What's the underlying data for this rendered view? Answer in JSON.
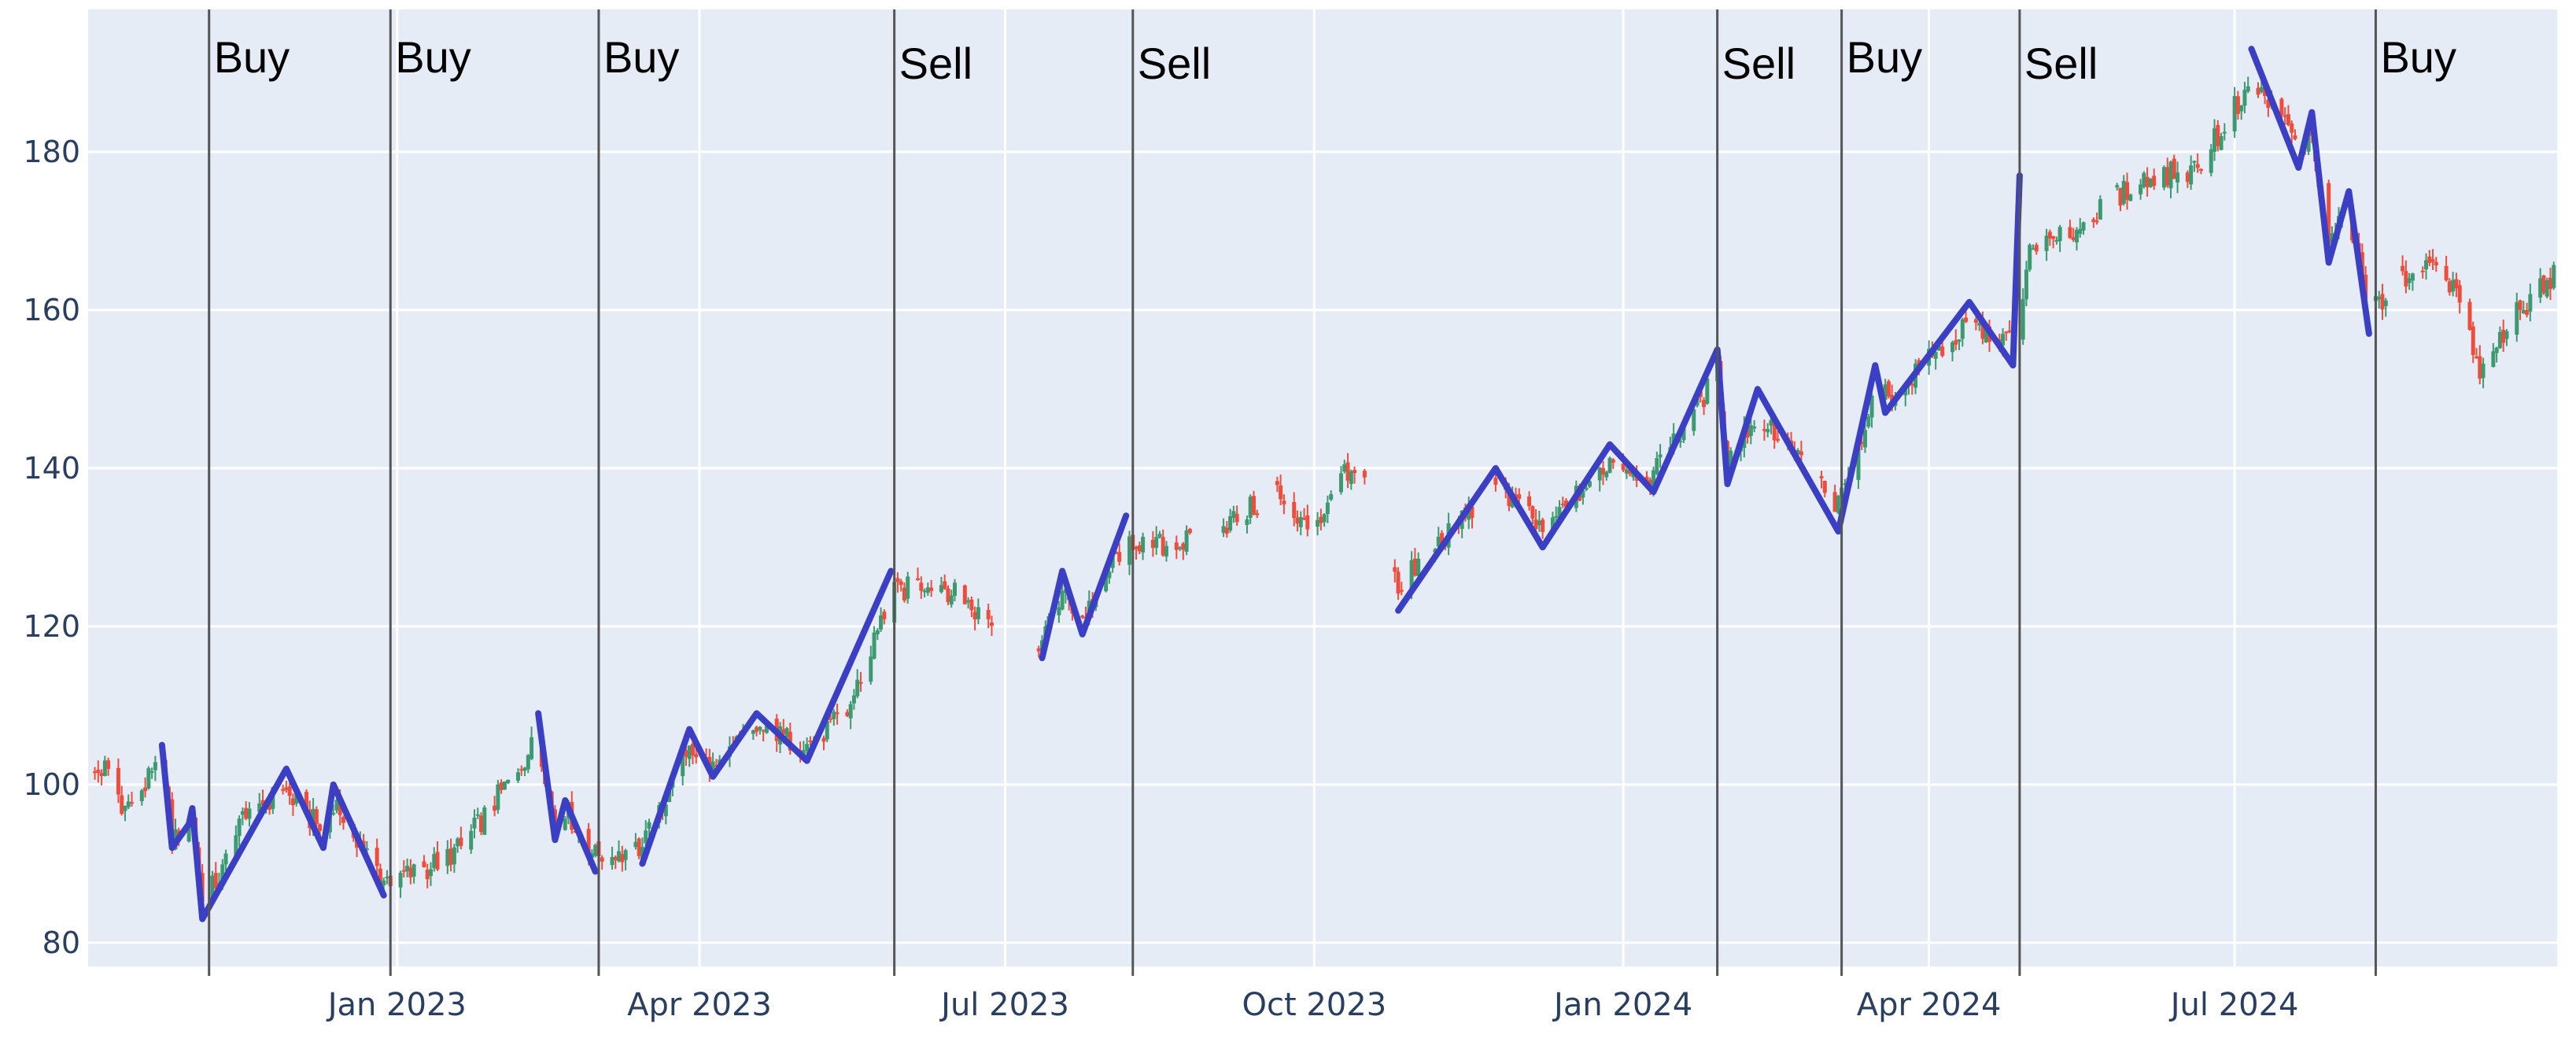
{
  "chart_data": {
    "type": "candlestick",
    "title": "",
    "xlabel": "",
    "ylabel": "",
    "xlim": [
      "2022-10-01",
      "2024-10-05"
    ],
    "ylim": [
      77,
      198
    ],
    "grid": true,
    "legend": "none",
    "colors": {
      "plot_bg": "#e5ecf6",
      "grid": "#ffffff",
      "axis_text": "#2a3f5f",
      "increasing": "#3d9970",
      "decreasing": "#ef4c3c",
      "zigzag": "#3b3fc4",
      "signal_line": "#555555"
    },
    "y_ticks": [
      {
        "value": 80,
        "label": "80"
      },
      {
        "value": 100,
        "label": "100"
      },
      {
        "value": 120,
        "label": "120"
      },
      {
        "value": 140,
        "label": "140"
      },
      {
        "value": 160,
        "label": "160"
      },
      {
        "value": 180,
        "label": "180"
      }
    ],
    "x_ticks": [
      {
        "date": "2023-01-01",
        "label": "Jan 2023"
      },
      {
        "date": "2023-04-01",
        "label": "Apr 2023"
      },
      {
        "date": "2023-07-01",
        "label": "Jul 2023"
      },
      {
        "date": "2023-10-01",
        "label": "Oct 2023"
      },
      {
        "date": "2024-01-01",
        "label": "Jan 2024"
      },
      {
        "date": "2024-04-01",
        "label": "Apr 2024"
      },
      {
        "date": "2024-07-01",
        "label": "Jul 2024"
      }
    ],
    "signals": [
      {
        "date": "2022-11-06",
        "label": "Buy"
      },
      {
        "date": "2022-12-30",
        "label": "Buy"
      },
      {
        "date": "2023-03-02",
        "label": "Buy"
      },
      {
        "date": "2023-05-29",
        "label": "Sell"
      },
      {
        "date": "2023-08-08",
        "label": "Sell"
      },
      {
        "date": "2024-01-29",
        "label": "Sell"
      },
      {
        "date": "2024-03-06",
        "label": "Buy"
      },
      {
        "date": "2024-04-28",
        "label": "Sell"
      },
      {
        "date": "2024-08-12",
        "label": "Buy"
      }
    ],
    "zigzag_segments": [
      [
        {
          "x": "2022-10-23",
          "y": 105
        },
        {
          "x": "2022-10-26",
          "y": 92
        },
        {
          "x": "2022-10-31",
          "y": 95
        },
        {
          "x": "2022-11-01",
          "y": 97
        },
        {
          "x": "2022-11-04",
          "y": 83
        },
        {
          "x": "2022-11-29",
          "y": 102
        },
        {
          "x": "2022-12-10",
          "y": 92
        },
        {
          "x": "2022-12-13",
          "y": 100
        },
        {
          "x": "2022-12-28",
          "y": 86
        }
      ],
      [
        {
          "x": "2023-02-12",
          "y": 109
        },
        {
          "x": "2023-02-17",
          "y": 93
        },
        {
          "x": "2023-02-20",
          "y": 98
        },
        {
          "x": "2023-03-01",
          "y": 89
        }
      ],
      [
        {
          "x": "2023-03-15",
          "y": 90
        },
        {
          "x": "2023-03-29",
          "y": 107
        },
        {
          "x": "2023-04-05",
          "y": 101
        },
        {
          "x": "2023-04-18",
          "y": 109
        },
        {
          "x": "2023-05-03",
          "y": 103
        },
        {
          "x": "2023-05-28",
          "y": 127
        }
      ],
      [
        {
          "x": "2023-07-12",
          "y": 116
        },
        {
          "x": "2023-07-18",
          "y": 127
        },
        {
          "x": "2023-07-24",
          "y": 119
        },
        {
          "x": "2023-08-06",
          "y": 134
        }
      ],
      [
        {
          "x": "2023-10-26",
          "y": 122
        },
        {
          "x": "2023-11-24",
          "y": 140
        },
        {
          "x": "2023-12-08",
          "y": 130
        },
        {
          "x": "2023-12-28",
          "y": 143
        },
        {
          "x": "2024-01-10",
          "y": 137
        },
        {
          "x": "2024-01-29",
          "y": 155
        },
        {
          "x": "2024-02-01",
          "y": 138
        },
        {
          "x": "2024-02-10",
          "y": 150
        },
        {
          "x": "2024-03-05",
          "y": 132
        },
        {
          "x": "2024-03-16",
          "y": 153
        },
        {
          "x": "2024-03-19",
          "y": 147
        },
        {
          "x": "2024-04-13",
          "y": 161
        },
        {
          "x": "2024-04-26",
          "y": 153
        },
        {
          "x": "2024-04-28",
          "y": 177
        }
      ],
      [
        {
          "x": "2024-07-06",
          "y": 193
        },
        {
          "x": "2024-07-20",
          "y": 178
        },
        {
          "x": "2024-07-24",
          "y": 185
        },
        {
          "x": "2024-07-29",
          "y": 166
        },
        {
          "x": "2024-08-04",
          "y": 175
        },
        {
          "x": "2024-08-10",
          "y": 157
        }
      ]
    ],
    "price_anchors": [
      {
        "x": "2022-10-01",
        "y": 101
      },
      {
        "x": "2022-10-06",
        "y": 102
      },
      {
        "x": "2022-10-12",
        "y": 97
      },
      {
        "x": "2022-10-20",
        "y": 101
      },
      {
        "x": "2022-10-23",
        "y": 103
      },
      {
        "x": "2022-10-26",
        "y": 93
      },
      {
        "x": "2022-11-01",
        "y": 96
      },
      {
        "x": "2022-11-04",
        "y": 85
      },
      {
        "x": "2022-11-10",
        "y": 89
      },
      {
        "x": "2022-11-17",
        "y": 97
      },
      {
        "x": "2022-11-29",
        "y": 99
      },
      {
        "x": "2022-12-10",
        "y": 94
      },
      {
        "x": "2022-12-13",
        "y": 98
      },
      {
        "x": "2022-12-28",
        "y": 88
      },
      {
        "x": "2023-01-08",
        "y": 89
      },
      {
        "x": "2023-01-20",
        "y": 92
      },
      {
        "x": "2023-02-01",
        "y": 99
      },
      {
        "x": "2023-02-12",
        "y": 106
      },
      {
        "x": "2023-02-17",
        "y": 95
      },
      {
        "x": "2023-02-20",
        "y": 97
      },
      {
        "x": "2023-03-01",
        "y": 91
      },
      {
        "x": "2023-03-15",
        "y": 92
      },
      {
        "x": "2023-03-29",
        "y": 105
      },
      {
        "x": "2023-04-05",
        "y": 102
      },
      {
        "x": "2023-04-18",
        "y": 107
      },
      {
        "x": "2023-05-03",
        "y": 105
      },
      {
        "x": "2023-05-15",
        "y": 109
      },
      {
        "x": "2023-05-28",
        "y": 124
      },
      {
        "x": "2023-06-10",
        "y": 126
      },
      {
        "x": "2023-06-25",
        "y": 121
      },
      {
        "x": "2023-07-12",
        "y": 118
      },
      {
        "x": "2023-07-18",
        "y": 124
      },
      {
        "x": "2023-07-24",
        "y": 121
      },
      {
        "x": "2023-08-06",
        "y": 131
      },
      {
        "x": "2023-08-20",
        "y": 130
      },
      {
        "x": "2023-09-05",
        "y": 133
      },
      {
        "x": "2023-09-20",
        "y": 137
      },
      {
        "x": "2023-10-01",
        "y": 131
      },
      {
        "x": "2023-10-10",
        "y": 139
      },
      {
        "x": "2023-10-20",
        "y": 138
      },
      {
        "x": "2023-10-26",
        "y": 125
      },
      {
        "x": "2023-11-10",
        "y": 132
      },
      {
        "x": "2023-11-24",
        "y": 138
      },
      {
        "x": "2023-12-08",
        "y": 132
      },
      {
        "x": "2023-12-28",
        "y": 141
      },
      {
        "x": "2024-01-10",
        "y": 139
      },
      {
        "x": "2024-01-29",
        "y": 152
      },
      {
        "x": "2024-02-01",
        "y": 141
      },
      {
        "x": "2024-02-10",
        "y": 147
      },
      {
        "x": "2024-03-05",
        "y": 135
      },
      {
        "x": "2024-03-16",
        "y": 150
      },
      {
        "x": "2024-03-19",
        "y": 149
      },
      {
        "x": "2024-04-13",
        "y": 158
      },
      {
        "x": "2024-04-26",
        "y": 156
      },
      {
        "x": "2024-05-01",
        "y": 167
      },
      {
        "x": "2024-05-15",
        "y": 170
      },
      {
        "x": "2024-06-01",
        "y": 176
      },
      {
        "x": "2024-06-20",
        "y": 178
      },
      {
        "x": "2024-07-06",
        "y": 189
      },
      {
        "x": "2024-07-20",
        "y": 181
      },
      {
        "x": "2024-07-24",
        "y": 182
      },
      {
        "x": "2024-07-29",
        "y": 169
      },
      {
        "x": "2024-08-04",
        "y": 172
      },
      {
        "x": "2024-08-10",
        "y": 160
      },
      {
        "x": "2024-08-25",
        "y": 166
      },
      {
        "x": "2024-09-05",
        "y": 163
      },
      {
        "x": "2024-09-12",
        "y": 151
      },
      {
        "x": "2024-09-20",
        "y": 158
      },
      {
        "x": "2024-10-05",
        "y": 165
      }
    ],
    "price_gaps": [
      [
        "2023-06-28",
        "2023-07-10"
      ],
      [
        "2023-08-28",
        "2023-09-03"
      ],
      [
        "2023-09-15",
        "2023-09-19"
      ],
      [
        "2023-10-17",
        "2023-10-24"
      ],
      [
        "2023-11-02",
        "2023-11-05"
      ],
      [
        "2023-11-20",
        "2023-11-23"
      ],
      [
        "2024-02-25",
        "2024-02-28"
      ],
      [
        "2024-05-23",
        "2024-05-26"
      ],
      [
        "2024-08-16",
        "2024-08-19"
      ]
    ]
  }
}
